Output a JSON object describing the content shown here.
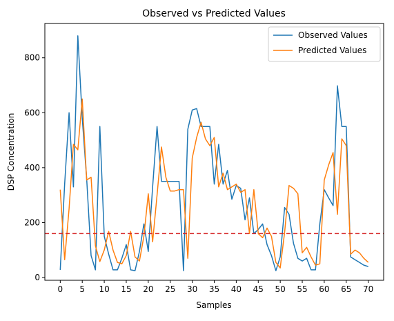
{
  "chart_data": {
    "type": "line",
    "title": "Observed vs Predicted Values",
    "xlabel": "Samples",
    "ylabel": "DSP Concentration",
    "xlim": [
      -3.5,
      73.5
    ],
    "ylim": [
      -10,
      925
    ],
    "x_ticks": [
      0,
      5,
      10,
      15,
      20,
      25,
      30,
      35,
      40,
      45,
      50,
      55,
      60,
      65,
      70
    ],
    "y_ticks": [
      0,
      200,
      400,
      600,
      800
    ],
    "grid": false,
    "legend_position": "top-right",
    "threshold_line": {
      "y": 160,
      "color": "#d62728",
      "style": "dashed"
    },
    "series": [
      {
        "name": "Observed Values",
        "color": "#1f77b4",
        "x": [
          0,
          1,
          2,
          3,
          4,
          5,
          6,
          7,
          8,
          9,
          10,
          11,
          12,
          13,
          14,
          15,
          16,
          17,
          18,
          19,
          20,
          21,
          22,
          23,
          24,
          25,
          26,
          27,
          28,
          29,
          30,
          31,
          32,
          33,
          34,
          35,
          36,
          37,
          38,
          39,
          40,
          41,
          42,
          43,
          44,
          45,
          46,
          47,
          48,
          49,
          50,
          51,
          52,
          53,
          54,
          55,
          56,
          57,
          58,
          59,
          60,
          61,
          62,
          63,
          64,
          65,
          66,
          67,
          68,
          69,
          70
        ],
        "values": [
          28,
          340,
          600,
          330,
          880,
          580,
          360,
          80,
          28,
          550,
          150,
          85,
          28,
          28,
          70,
          120,
          28,
          25,
          95,
          195,
          95,
          330,
          550,
          350,
          350,
          350,
          350,
          350,
          25,
          540,
          610,
          615,
          550,
          550,
          550,
          340,
          485,
          340,
          390,
          285,
          335,
          325,
          210,
          290,
          160,
          175,
          195,
          120,
          80,
          25,
          75,
          255,
          230,
          125,
          70,
          60,
          70,
          28,
          28,
          195,
          320,
          290,
          262,
          698,
          550,
          550,
          75,
          65,
          55,
          45,
          40
        ]
      },
      {
        "name": "Predicted Values",
        "color": "#ff7f0e",
        "x": [
          0,
          1,
          2,
          3,
          4,
          5,
          6,
          7,
          8,
          9,
          10,
          11,
          12,
          13,
          14,
          15,
          16,
          17,
          18,
          19,
          20,
          21,
          22,
          23,
          24,
          25,
          26,
          27,
          28,
          29,
          30,
          31,
          32,
          33,
          34,
          35,
          36,
          37,
          38,
          39,
          40,
          41,
          42,
          43,
          44,
          45,
          46,
          47,
          48,
          49,
          50,
          51,
          52,
          53,
          54,
          55,
          56,
          57,
          58,
          59,
          60,
          61,
          62,
          63,
          64,
          65,
          66,
          67,
          68,
          69,
          70
        ],
        "values": [
          320,
          65,
          250,
          485,
          465,
          650,
          355,
          365,
          115,
          58,
          100,
          168,
          100,
          55,
          50,
          80,
          168,
          75,
          60,
          150,
          305,
          130,
          300,
          475,
          365,
          315,
          315,
          320,
          320,
          70,
          435,
          510,
          565,
          505,
          480,
          510,
          330,
          380,
          320,
          330,
          340,
          310,
          320,
          160,
          320,
          160,
          145,
          180,
          150,
          55,
          35,
          165,
          335,
          325,
          305,
          90,
          110,
          75,
          45,
          50,
          355,
          410,
          455,
          230,
          505,
          480,
          85,
          100,
          90,
          70,
          55
        ]
      }
    ]
  }
}
